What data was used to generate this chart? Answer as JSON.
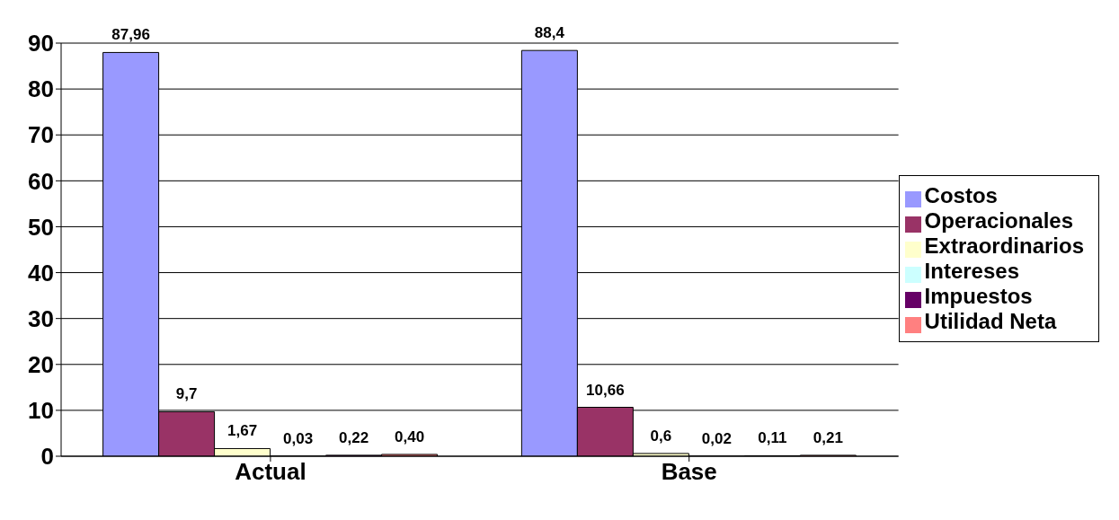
{
  "chart_data": {
    "type": "bar",
    "categories": [
      "Actual",
      "Base"
    ],
    "series": [
      {
        "name": "Costos",
        "color": "#9999ff",
        "values": [
          87.96,
          88.4
        ],
        "value_labels": [
          "87,96",
          "88,4"
        ]
      },
      {
        "name": "Operacionales",
        "color": "#993366",
        "values": [
          9.7,
          10.66
        ],
        "value_labels": [
          "9,7",
          "10,66"
        ]
      },
      {
        "name": "Extraordinarios",
        "color": "#ffffcc",
        "values": [
          1.67,
          0.6
        ],
        "value_labels": [
          "1,67",
          "0,6"
        ]
      },
      {
        "name": "Intereses",
        "color": "#ccffff",
        "values": [
          0.03,
          0.02
        ],
        "value_labels": [
          "0,03",
          "0,02"
        ]
      },
      {
        "name": "Impuestos",
        "color": "#660066",
        "values": [
          0.22,
          0.11
        ],
        "value_labels": [
          "0,22",
          "0,11"
        ]
      },
      {
        "name": "Utilidad Neta",
        "color": "#ff8080",
        "values": [
          0.4,
          0.21
        ],
        "value_labels": [
          "0,40",
          "0,21"
        ]
      }
    ],
    "ylim": [
      0,
      90
    ],
    "yticks": [
      0,
      10,
      20,
      30,
      40,
      50,
      60,
      70,
      80,
      90
    ],
    "grid": "y",
    "legend": "right"
  }
}
